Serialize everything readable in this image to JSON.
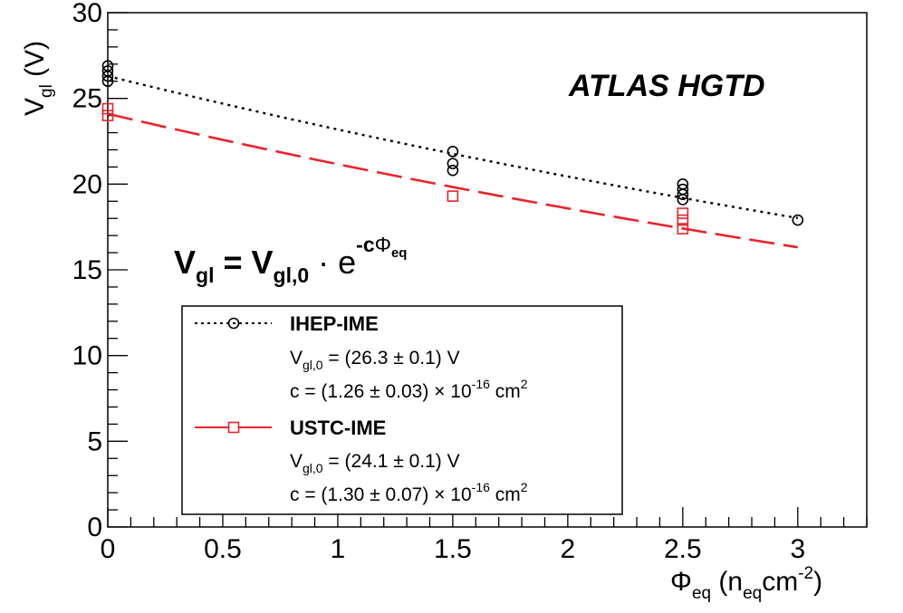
{
  "chart_data": {
    "type": "scatter",
    "title": "",
    "xlabel": {
      "main": "Φ",
      "sub1": "eq",
      "mid": " (n",
      "sub2": "eq",
      "unit": "cm",
      "sup": "-2",
      "close": ")"
    },
    "ylabel": {
      "main": "V",
      "sub": "gl",
      "unit": " (V)"
    },
    "xlim": [
      0,
      3.3
    ],
    "ylim": [
      0,
      30
    ],
    "x_ticks": [
      "0",
      "0.5",
      "1",
      "1.5",
      "2",
      "2.5",
      "3"
    ],
    "y_ticks": [
      "0",
      "5",
      "10",
      "15",
      "20",
      "25",
      "30"
    ],
    "grid": false,
    "annotations": {
      "experiment": "ATLAS HGTD",
      "formula": {
        "v": "V",
        "v_sub": "gl",
        "eq": " = ",
        "v0": "V",
        "v0_sub": "gl,0",
        "dot": " · e",
        "exp_minus_c": "-c",
        "phi": "Φ",
        "phi_sub": "eq"
      }
    },
    "legend_placement": "bottom-left",
    "series": [
      {
        "name": "IHEP-IME",
        "color": "#000000",
        "marker": "circle",
        "line_style": "dotted",
        "fit": {
          "V0": 26.3,
          "V0_err": 0.1,
          "c": 1.26,
          "c_err": 0.03
        },
        "fit_text": {
          "v_label": "V",
          "v_sub": "gl,0",
          "v_value": " = (26.3 ± 0.1) V",
          "c_prefix": "c = (1.26 ± 0.03) × 10",
          "c_exp": "-16",
          "c_unit": " cm",
          "c_unit_sup": "2"
        },
        "points": [
          {
            "x": 0,
            "y": 26.9
          },
          {
            "x": 0,
            "y": 26.6
          },
          {
            "x": 0,
            "y": 26.3
          },
          {
            "x": 0,
            "y": 26.0
          },
          {
            "x": 1.5,
            "y": 21.9
          },
          {
            "x": 1.5,
            "y": 21.2
          },
          {
            "x": 1.5,
            "y": 20.8
          },
          {
            "x": 2.5,
            "y": 20.0
          },
          {
            "x": 2.5,
            "y": 19.7
          },
          {
            "x": 2.5,
            "y": 19.4
          },
          {
            "x": 2.5,
            "y": 19.1
          },
          {
            "x": 3.0,
            "y": 17.9
          }
        ]
      },
      {
        "name": "USTC-IME",
        "color": "#e8242b",
        "marker": "square",
        "line_style": "dashed",
        "fit": {
          "V0": 24.1,
          "V0_err": 0.1,
          "c": 1.3,
          "c_err": 0.07
        },
        "fit_text": {
          "v_label": "V",
          "v_sub": "gl,0",
          "v_value": " = (24.1 ± 0.1) V",
          "c_prefix": "c = (1.30 ± 0.07) × 10",
          "c_exp": "-16",
          "c_unit": " cm",
          "c_unit_sup": "2"
        },
        "points": [
          {
            "x": 0,
            "y": 24.4
          },
          {
            "x": 0,
            "y": 24.0
          },
          {
            "x": 1.5,
            "y": 19.3
          },
          {
            "x": 2.5,
            "y": 18.3
          },
          {
            "x": 2.5,
            "y": 17.9
          },
          {
            "x": 2.5,
            "y": 17.4
          }
        ]
      }
    ]
  }
}
